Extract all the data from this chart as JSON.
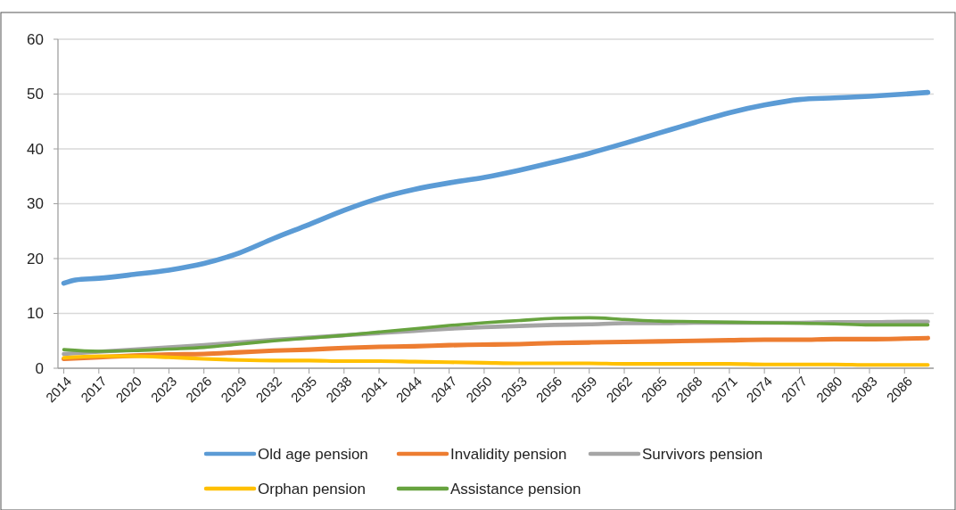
{
  "chart_data": {
    "type": "line",
    "xlim": [
      2013.5,
      2088.5
    ],
    "xticks": [
      2014,
      2017,
      2020,
      2023,
      2026,
      2029,
      2032,
      2035,
      2038,
      2041,
      2044,
      2047,
      2050,
      2053,
      2056,
      2059,
      2062,
      2065,
      2068,
      2071,
      2074,
      2077,
      2080,
      2083,
      2086
    ],
    "ylim": [
      0,
      60
    ],
    "yticks": [
      0,
      10,
      20,
      30,
      40,
      50,
      60
    ],
    "grid": "y",
    "legend": "bottom",
    "line_style": "solid",
    "marker": "none",
    "series": [
      {
        "name": "Old age pension",
        "color": "#5b9bd5",
        "x": [
          2014,
          2015,
          2017,
          2020,
          2023,
          2026,
          2029,
          2032,
          2035,
          2038,
          2041,
          2044,
          2047,
          2050,
          2053,
          2056,
          2059,
          2062,
          2065,
          2068,
          2071,
          2074,
          2077,
          2080,
          2083,
          2086,
          2088
        ],
        "values": [
          15.5,
          16.1,
          16.4,
          17.1,
          17.9,
          19.1,
          21.0,
          23.7,
          26.2,
          28.8,
          31.0,
          32.6,
          33.8,
          34.8,
          36.1,
          37.6,
          39.2,
          41.0,
          42.9,
          44.8,
          46.6,
          48.0,
          49.0,
          49.3,
          49.6,
          50.0,
          50.3
        ]
      },
      {
        "name": "Invalidity pension",
        "color": "#ed7d31",
        "values": [
          1.7,
          2.0,
          2.3,
          2.5,
          2.6,
          2.9,
          3.2,
          3.4,
          3.7,
          3.9,
          4.0,
          4.2,
          4.3,
          4.4,
          4.6,
          4.7,
          4.8,
          4.9,
          5.0,
          5.1,
          5.2,
          5.2,
          5.3,
          5.3,
          5.4,
          5.5
        ]
      },
      {
        "name": "Survivors pension",
        "color": "#a5a5a5",
        "values": [
          2.6,
          3.0,
          3.4,
          3.8,
          4.2,
          4.7,
          5.2,
          5.6,
          6.0,
          6.4,
          6.8,
          7.2,
          7.5,
          7.7,
          7.9,
          8.0,
          8.2,
          8.2,
          8.3,
          8.3,
          8.3,
          8.3,
          8.4,
          8.4,
          8.5,
          8.5
        ]
      },
      {
        "name": "Orphan pension",
        "color": "#ffc000",
        "values": [
          1.9,
          2.2,
          2.2,
          2.0,
          1.7,
          1.5,
          1.4,
          1.4,
          1.3,
          1.3,
          1.2,
          1.1,
          1.0,
          0.9,
          0.9,
          0.9,
          0.8,
          0.8,
          0.8,
          0.8,
          0.7,
          0.7,
          0.7,
          0.6,
          0.6,
          0.6
        ]
      },
      {
        "name": "Assistance pension",
        "color": "#67a33f",
        "values": [
          3.4,
          3.1,
          3.2,
          3.5,
          3.8,
          4.4,
          5.0,
          5.5,
          6.0,
          6.6,
          7.2,
          7.8,
          8.3,
          8.7,
          9.1,
          9.2,
          8.9,
          8.6,
          8.5,
          8.4,
          8.3,
          8.2,
          8.1,
          7.9,
          7.9,
          7.9
        ]
      }
    ],
    "x": [
      2014,
      2017,
      2020,
      2023,
      2026,
      2029,
      2032,
      2035,
      2038,
      2041,
      2044,
      2047,
      2050,
      2053,
      2056,
      2059,
      2062,
      2065,
      2068,
      2071,
      2074,
      2077,
      2080,
      2083,
      2086,
      2088
    ]
  }
}
